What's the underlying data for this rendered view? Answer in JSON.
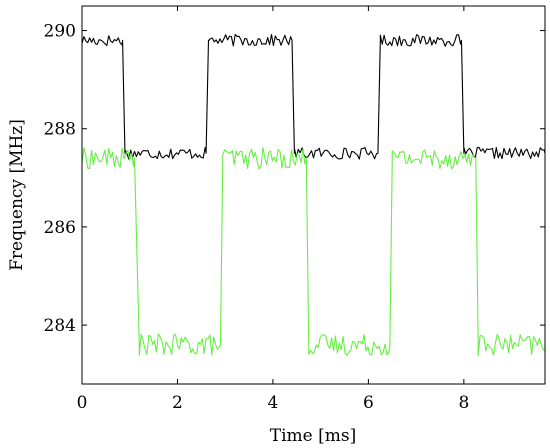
{
  "chart_data": {
    "type": "line",
    "title": "",
    "xlabel": "Time [ms]",
    "ylabel": "Frequency [MHz]",
    "xlim": [
      0,
      9.7
    ],
    "ylim": [
      282.8,
      290.5
    ],
    "x_ticks": [
      0,
      2,
      4,
      6,
      8
    ],
    "x_tick_labels": [
      "0",
      "2",
      "4",
      "6",
      "8"
    ],
    "y_ticks": [
      284,
      286,
      288,
      290
    ],
    "y_tick_labels": [
      "284",
      "286",
      "288",
      "290"
    ],
    "grid": false,
    "legend": "none",
    "series": [
      {
        "color": "#000000",
        "high": 289.8,
        "low": 287.5,
        "noise": 0.12,
        "x": [
          0,
          0.85,
          0.9,
          2.6,
          2.65,
          4.4,
          4.45,
          6.2,
          6.25,
          7.95,
          8.0,
          9.7
        ],
        "y": [
          289.8,
          289.8,
          287.5,
          287.5,
          289.8,
          289.8,
          287.5,
          287.5,
          289.8,
          289.8,
          287.5,
          287.5
        ]
      },
      {
        "color": "#66ee44",
        "high": 287.4,
        "low": 283.6,
        "noise": 0.22,
        "x": [
          0,
          1.1,
          1.2,
          2.9,
          2.95,
          4.7,
          4.75,
          6.45,
          6.5,
          8.25,
          8.3,
          9.7
        ],
        "y": [
          287.4,
          287.4,
          283.6,
          283.6,
          287.4,
          287.4,
          283.6,
          283.6,
          287.4,
          287.4,
          283.6,
          283.6
        ]
      }
    ]
  }
}
